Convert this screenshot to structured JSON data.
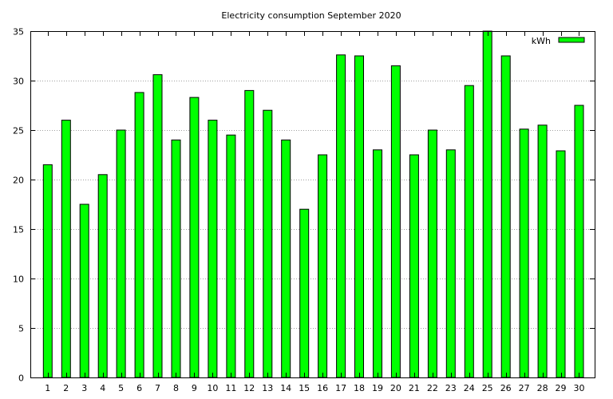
{
  "chart_data": {
    "type": "bar",
    "title": "Electricity consumption September 2020",
    "xlabel": "",
    "ylabel": "",
    "ylim": [
      0,
      35
    ],
    "yticks": [
      0,
      5,
      10,
      15,
      20,
      25,
      30,
      35
    ],
    "grid": true,
    "legend_position": "top-right",
    "categories": [
      "1",
      "2",
      "3",
      "4",
      "5",
      "6",
      "7",
      "8",
      "9",
      "10",
      "11",
      "12",
      "13",
      "14",
      "15",
      "16",
      "17",
      "18",
      "19",
      "20",
      "21",
      "22",
      "23",
      "24",
      "25",
      "26",
      "27",
      "28",
      "29",
      "30"
    ],
    "series": [
      {
        "name": "kWh",
        "color": "#00ff00",
        "values": [
          21.5,
          26,
          17.5,
          20.5,
          25,
          28.8,
          30.6,
          24,
          28.3,
          26,
          24.5,
          29,
          27,
          24,
          17,
          22.5,
          32.6,
          32.5,
          23,
          31.5,
          22.5,
          25,
          23,
          29.5,
          35,
          32.5,
          25.1,
          25.5,
          22.9,
          27.5
        ]
      }
    ]
  }
}
